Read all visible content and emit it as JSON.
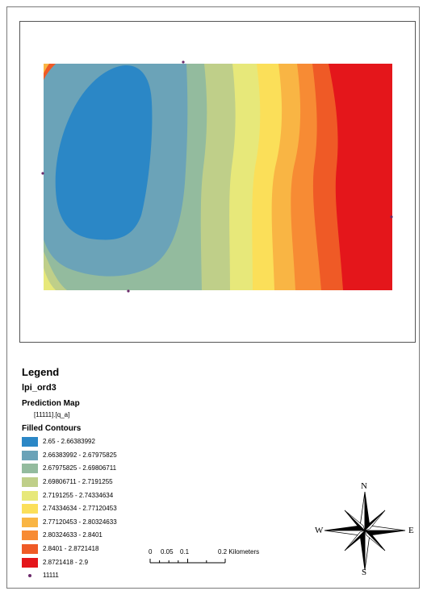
{
  "map": {
    "legend": {
      "title": "Legend",
      "layer_name": "lpi_ord3",
      "prediction_title": "Prediction Map",
      "field": "[11111].[q_a]",
      "filled_contours_title": "Filled Contours",
      "classes": [
        {
          "label": "2.65 - 2.66383992",
          "color": "#2b87c6"
        },
        {
          "label": "2.66383992 - 2.67975825",
          "color": "#6ba3b8"
        },
        {
          "label": "2.67975825 - 2.69806711",
          "color": "#93bb9e"
        },
        {
          "label": "2.69806711 - 2.7191255",
          "color": "#bfcf89"
        },
        {
          "label": "2.7191255 - 2.74334634",
          "color": "#e7e87a"
        },
        {
          "label": "2.74334634 - 2.77120453",
          "color": "#fbdf59"
        },
        {
          "label": "2.77120453 - 2.80324633",
          "color": "#f9b544"
        },
        {
          "label": "2.80324633 - 2.8401",
          "color": "#f78b34"
        },
        {
          "label": "2.8401 - 2.8721418",
          "color": "#ef5a26"
        },
        {
          "label": "2.8721418 - 2.9",
          "color": "#e4161b"
        }
      ],
      "points_label": "11111"
    },
    "scale_bar": {
      "ticks": [
        "0",
        "0.05",
        "0.1",
        "0.2 Kilometers"
      ]
    },
    "north_arrow": {
      "n": "N",
      "s": "S",
      "e": "E",
      "w": "W"
    }
  }
}
